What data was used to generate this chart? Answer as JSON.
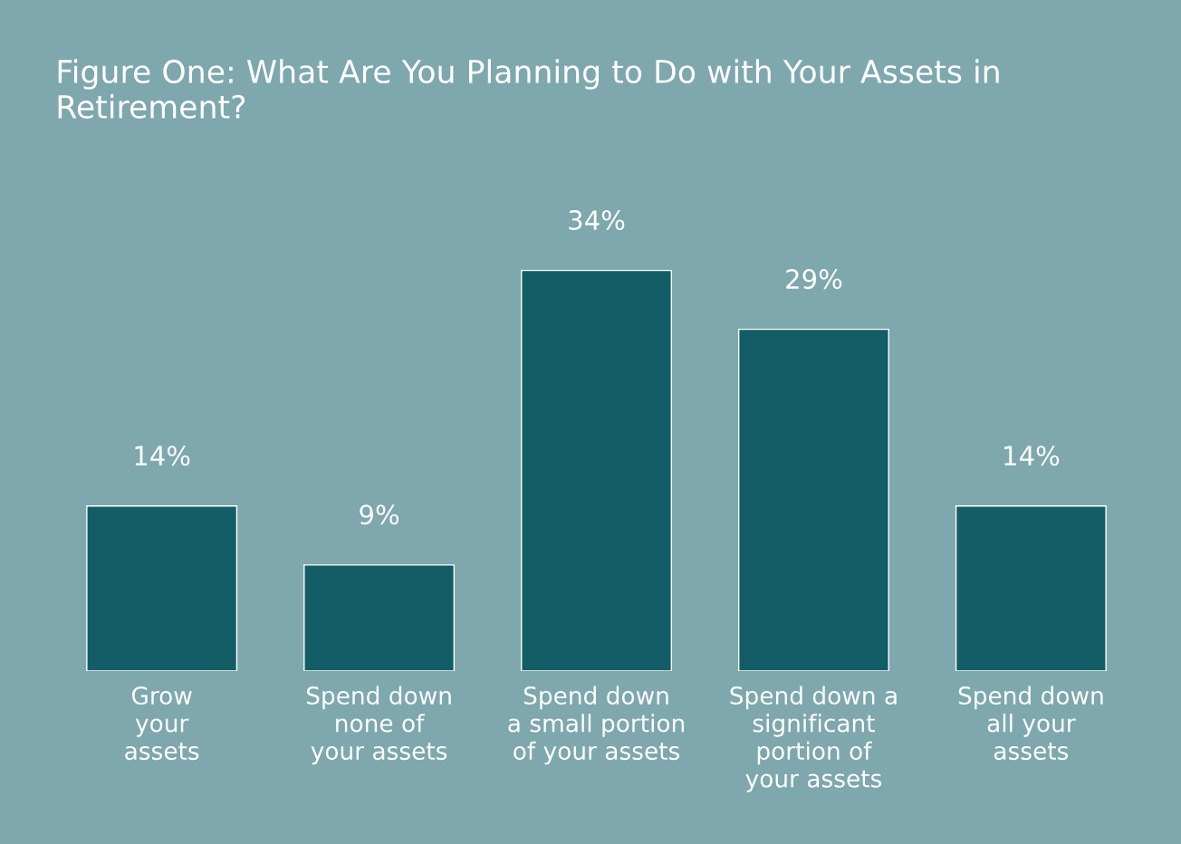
{
  "chart_data": {
    "type": "bar",
    "title": "Figure One: What Are You Planning to Do with Your Assets in Retirement?",
    "categories": [
      "Grow\nyour\nassets",
      "Spend down\nnone of\nyour assets",
      "Spend down\na small portion\nof your assets",
      "Spend down a\nsignificant\nportion of\nyour assets",
      "Spend down\nall your\nassets"
    ],
    "values": [
      14,
      9,
      34,
      29,
      14
    ],
    "value_labels": [
      "14%",
      "9%",
      "34%",
      "29%",
      "14%"
    ],
    "color": "#135e66"
  }
}
